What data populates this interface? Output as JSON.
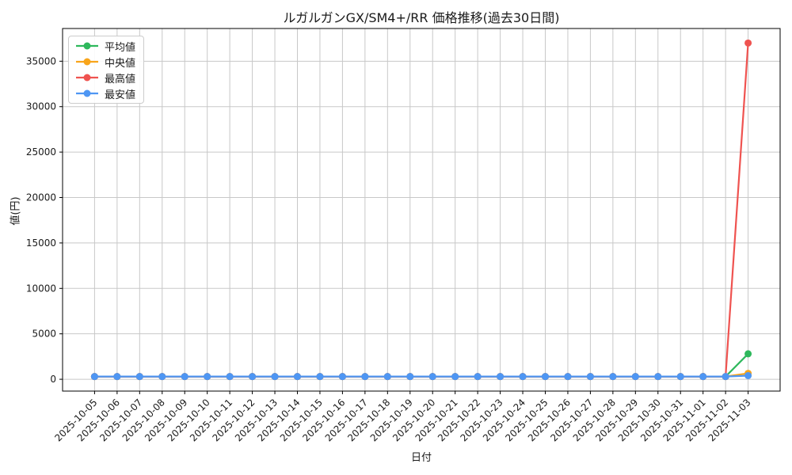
{
  "title": "ルガルガンGX/SM4+/RR  価格推移(過去30日間)",
  "colors": {
    "grid": "#c8c8c8",
    "spine": "#000000",
    "background": "#ffffff",
    "text": "#1a1a1a",
    "avg_green": "#2eb85c",
    "median_orange": "#f8a51b",
    "max_red": "#ef5350",
    "min_blue": "#4e96f3"
  },
  "chart_data": {
    "type": "line",
    "title": "ルガルガンGX/SM4+/RR  価格推移(過去30日間)",
    "xlabel": "日付",
    "ylabel": "値(円)",
    "grid": true,
    "legend_position": "upper-left",
    "ylim": [
      -1300,
      38600
    ],
    "yticks": [
      0,
      5000,
      10000,
      15000,
      20000,
      25000,
      30000,
      35000
    ],
    "x_margin": 1.42,
    "x": [
      "2025-10-05",
      "2025-10-06",
      "2025-10-07",
      "2025-10-08",
      "2025-10-09",
      "2025-10-10",
      "2025-10-11",
      "2025-10-12",
      "2025-10-13",
      "2025-10-14",
      "2025-10-15",
      "2025-10-16",
      "2025-10-17",
      "2025-10-18",
      "2025-10-19",
      "2025-10-20",
      "2025-10-21",
      "2025-10-22",
      "2025-10-23",
      "2025-10-24",
      "2025-10-25",
      "2025-10-26",
      "2025-10-27",
      "2025-10-28",
      "2025-10-29",
      "2025-10-30",
      "2025-10-31",
      "2025-11-01",
      "2025-11-02",
      "2025-11-03"
    ],
    "series": [
      {
        "name": "平均値",
        "color": "#2eb85c",
        "values": [
          300,
          300,
          300,
          300,
          300,
          300,
          300,
          300,
          300,
          300,
          300,
          300,
          300,
          300,
          300,
          300,
          300,
          300,
          300,
          300,
          300,
          300,
          300,
          300,
          300,
          300,
          300,
          300,
          300,
          2800
        ]
      },
      {
        "name": "中央値",
        "color": "#f8a51b",
        "values": [
          300,
          300,
          300,
          300,
          300,
          300,
          300,
          300,
          300,
          300,
          300,
          300,
          300,
          300,
          300,
          300,
          300,
          300,
          300,
          300,
          300,
          300,
          300,
          300,
          300,
          300,
          300,
          300,
          300,
          650
        ]
      },
      {
        "name": "最高値",
        "color": "#ef5350",
        "values": [
          300,
          300,
          300,
          300,
          300,
          300,
          300,
          300,
          300,
          300,
          300,
          300,
          300,
          300,
          300,
          300,
          300,
          300,
          300,
          300,
          300,
          300,
          300,
          300,
          300,
          300,
          300,
          300,
          300,
          37000
        ]
      },
      {
        "name": "最安値",
        "color": "#4e96f3",
        "values": [
          300,
          300,
          300,
          300,
          300,
          300,
          300,
          300,
          300,
          300,
          300,
          300,
          300,
          300,
          300,
          300,
          300,
          300,
          300,
          300,
          300,
          300,
          300,
          300,
          300,
          300,
          300,
          300,
          300,
          400
        ]
      }
    ]
  }
}
